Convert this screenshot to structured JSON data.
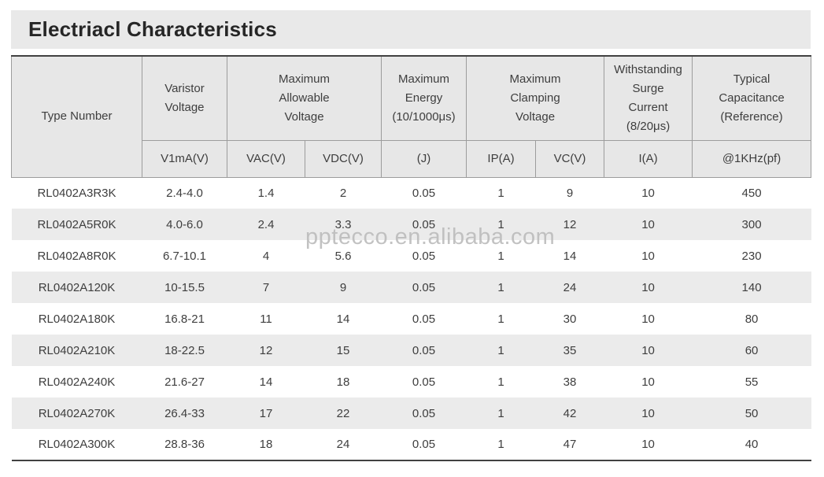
{
  "title": "Electriacl Characteristics",
  "watermark": "pptecco.en.alibaba.com",
  "colors": {
    "title_bar_bg": "#e9e9e9",
    "header_bg": "#e7e7e7",
    "row_stripe": "#ebebeb",
    "dark_rule": "#414141",
    "header_border": "#9c9c9c",
    "text": "#3e3e3e",
    "watermark": "#bcbcbc"
  },
  "header": {
    "groups": [
      {
        "label": "Type Number"
      },
      {
        "label": "Varistor\nVoltage"
      },
      {
        "label": "Maximum\nAllowable\nVoltage"
      },
      {
        "label": "Maximum\nEnergy\n(10/1000μs)"
      },
      {
        "label": "Maximum\nClamping\nVoltage"
      },
      {
        "label": "Withstanding\nSurge\nCurrent\n(8/20μs)"
      },
      {
        "label": "Typical\nCapacitance\n(Reference)"
      }
    ],
    "units": [
      "V1mA(V)",
      "VAC(V)",
      "VDC(V)",
      "(J)",
      "IP(A)",
      "VC(V)",
      "I(A)",
      "@1KHz(pf)"
    ]
  },
  "rows": [
    {
      "type_number": "RL0402A3R3K",
      "v1ma": "2.4-4.0",
      "vac": "1.4",
      "vdc": "2",
      "energy_j": "0.05",
      "ip_a": "1",
      "vc_v": "9",
      "i_a": "10",
      "capacitance": "450"
    },
    {
      "type_number": "RL0402A5R0K",
      "v1ma": "4.0-6.0",
      "vac": "2.4",
      "vdc": "3.3",
      "energy_j": "0.05",
      "ip_a": "1",
      "vc_v": "12",
      "i_a": "10",
      "capacitance": "300"
    },
    {
      "type_number": "RL0402A8R0K",
      "v1ma": "6.7-10.1",
      "vac": "4",
      "vdc": "5.6",
      "energy_j": "0.05",
      "ip_a": "1",
      "vc_v": "14",
      "i_a": "10",
      "capacitance": "230"
    },
    {
      "type_number": "RL0402A120K",
      "v1ma": "10-15.5",
      "vac": "7",
      "vdc": "9",
      "energy_j": "0.05",
      "ip_a": "1",
      "vc_v": "24",
      "i_a": "10",
      "capacitance": "140"
    },
    {
      "type_number": "RL0402A180K",
      "v1ma": "16.8-21",
      "vac": "11",
      "vdc": "14",
      "energy_j": "0.05",
      "ip_a": "1",
      "vc_v": "30",
      "i_a": "10",
      "capacitance": "80"
    },
    {
      "type_number": "RL0402A210K",
      "v1ma": "18-22.5",
      "vac": "12",
      "vdc": "15",
      "energy_j": "0.05",
      "ip_a": "1",
      "vc_v": "35",
      "i_a": "10",
      "capacitance": "60"
    },
    {
      "type_number": "RL0402A240K",
      "v1ma": "21.6-27",
      "vac": "14",
      "vdc": "18",
      "energy_j": "0.05",
      "ip_a": "1",
      "vc_v": "38",
      "i_a": "10",
      "capacitance": "55"
    },
    {
      "type_number": "RL0402A270K",
      "v1ma": "26.4-33",
      "vac": "17",
      "vdc": "22",
      "energy_j": "0.05",
      "ip_a": "1",
      "vc_v": "42",
      "i_a": "10",
      "capacitance": "50"
    },
    {
      "type_number": "RL0402A300K",
      "v1ma": "28.8-36",
      "vac": "18",
      "vdc": "24",
      "energy_j": "0.05",
      "ip_a": "1",
      "vc_v": "47",
      "i_a": "10",
      "capacitance": "40"
    }
  ]
}
